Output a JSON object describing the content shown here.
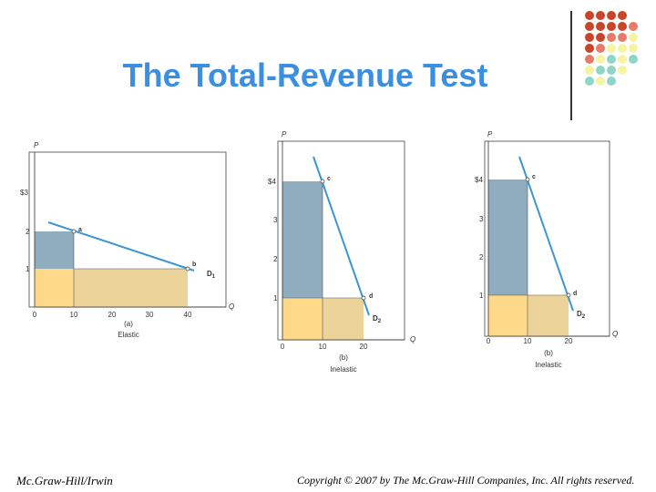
{
  "slide": {
    "title": "The Total-Revenue Test",
    "footer_left": "Mc.Graw-Hill/Irwin",
    "footer_right": "Copyright © 2007 by The Mc.Graw-Hill Companies, Inc. All rights reserved."
  },
  "colors": {
    "title": "#3a8fe0",
    "gain_area": "#8fadbe",
    "common_area": "#ffd98a",
    "loss_area": "#ecd39a",
    "demand_line": "#3c95d4",
    "dot_palette": [
      "#c8452a",
      "#e87a6a",
      "#f6f3a3",
      "#8fd6c8"
    ]
  },
  "panels": [
    {
      "id": "a",
      "y_axis_label": "P",
      "x_axis_label": "Q",
      "y_ticks": [
        "$3",
        "2",
        "1"
      ],
      "x_ticks": [
        "0",
        "10",
        "20",
        "30",
        "40"
      ],
      "point_a": "a",
      "point_b": "b",
      "curve_label": "D",
      "curve_sub": "1",
      "caption_letter": "(a)",
      "caption": "Elastic",
      "chart_data": {
        "type": "line",
        "x": [
          10,
          40
        ],
        "y": [
          2,
          1
        ],
        "xlim": [
          0,
          50
        ],
        "ylim": [
          0,
          3
        ]
      }
    },
    {
      "id": "b",
      "y_axis_label": "P",
      "x_axis_label": "Q",
      "y_ticks": [
        "$4",
        "3",
        "2",
        "1"
      ],
      "x_ticks": [
        "0",
        "10",
        "20"
      ],
      "point_a": "c",
      "point_b": "d",
      "curve_label": "D",
      "curve_sub": "2",
      "caption_letter": "(b)",
      "caption": "Inelastic",
      "chart_data": {
        "type": "line",
        "x": [
          10,
          20
        ],
        "y": [
          4,
          1
        ],
        "xlim": [
          0,
          30
        ],
        "ylim": [
          0,
          4
        ]
      }
    },
    {
      "id": "c",
      "y_axis_label": "P",
      "x_axis_label": "Q",
      "y_ticks": [
        "$4",
        "3",
        "2",
        "1"
      ],
      "x_ticks": [
        "0",
        "10",
        "20"
      ],
      "point_a": "c",
      "point_b": "d",
      "curve_label": "D",
      "curve_sub": "2",
      "caption_letter": "(b)",
      "caption": "Inelastic",
      "chart_data": {
        "type": "line",
        "x": [
          10,
          20
        ],
        "y": [
          4,
          1
        ],
        "xlim": [
          0,
          30
        ],
        "ylim": [
          0,
          4
        ]
      }
    }
  ]
}
